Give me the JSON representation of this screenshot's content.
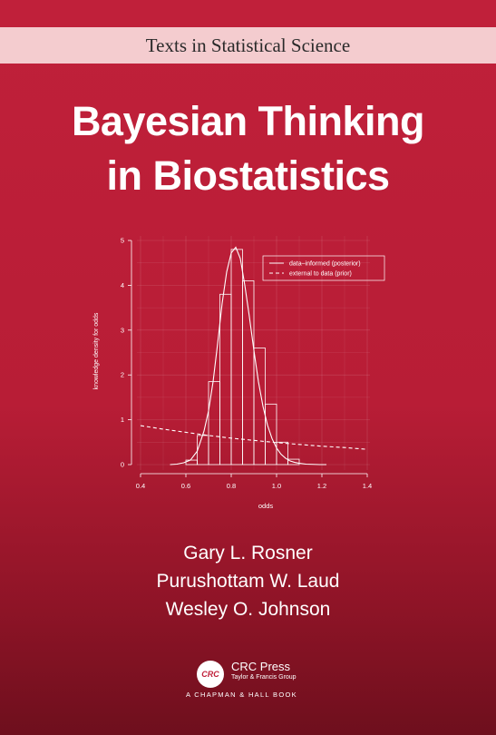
{
  "series": "Texts in Statistical Science",
  "title": {
    "line1": "Bayesian Thinking",
    "line2": "in Biostatistics"
  },
  "authors": [
    "Gary L. Rosner",
    "Purushottam W. Laud",
    "Wesley O. Johnson"
  ],
  "publisher": {
    "name": "CRC Press",
    "subtitle": "Taylor & Francis Group",
    "logo_text": "CRC",
    "imprint": "A CHAPMAN & HALL BOOK"
  },
  "colors": {
    "background": "#c0203a",
    "band": "#f4cccf",
    "text": "#ffffff"
  },
  "chart_data": {
    "type": "line",
    "xlabel": "odds",
    "ylabel": "knowledge density for odds",
    "xlim": [
      0.4,
      1.4
    ],
    "ylim": [
      0,
      5
    ],
    "xticks": [
      "0.4",
      "0.6",
      "0.8",
      "1.0",
      "1.2",
      "1.4"
    ],
    "yticks": [
      "0",
      "1",
      "2",
      "3",
      "4",
      "5"
    ],
    "grid": true,
    "legend": "top-right",
    "histogram": {
      "bin_width": 0.05,
      "bins": [
        {
          "x0": 0.6,
          "y": 0.1
        },
        {
          "x0": 0.65,
          "y": 0.65
        },
        {
          "x0": 0.7,
          "y": 1.85
        },
        {
          "x0": 0.75,
          "y": 3.8
        },
        {
          "x0": 0.8,
          "y": 4.8
        },
        {
          "x0": 0.85,
          "y": 4.1
        },
        {
          "x0": 0.9,
          "y": 2.6
        },
        {
          "x0": 0.95,
          "y": 1.35
        },
        {
          "x0": 1.0,
          "y": 0.5
        },
        {
          "x0": 1.05,
          "y": 0.12
        }
      ]
    },
    "series": [
      {
        "name": "data–informed (posterior)",
        "style": "solid",
        "x": [
          0.53,
          0.56,
          0.59,
          0.62,
          0.65,
          0.68,
          0.7,
          0.72,
          0.74,
          0.76,
          0.78,
          0.8,
          0.82,
          0.84,
          0.86,
          0.88,
          0.9,
          0.92,
          0.94,
          0.96,
          0.98,
          1.0,
          1.02,
          1.04,
          1.06,
          1.08,
          1.1,
          1.13,
          1.16,
          1.19,
          1.22
        ],
        "y": [
          0.0,
          0.01,
          0.04,
          0.1,
          0.3,
          0.75,
          1.2,
          1.85,
          2.7,
          3.6,
          4.3,
          4.72,
          4.85,
          4.6,
          4.0,
          3.3,
          2.55,
          1.85,
          1.3,
          0.88,
          0.58,
          0.37,
          0.23,
          0.14,
          0.08,
          0.05,
          0.03,
          0.01,
          0.005,
          0.0,
          0.0
        ]
      },
      {
        "name": "external to data (prior)",
        "style": "dashed",
        "x": [
          0.4,
          0.5,
          0.6,
          0.7,
          0.8,
          0.9,
          1.0,
          1.1,
          1.2,
          1.3,
          1.4
        ],
        "y": [
          0.87,
          0.79,
          0.72,
          0.65,
          0.59,
          0.54,
          0.49,
          0.45,
          0.41,
          0.38,
          0.34
        ]
      }
    ]
  }
}
